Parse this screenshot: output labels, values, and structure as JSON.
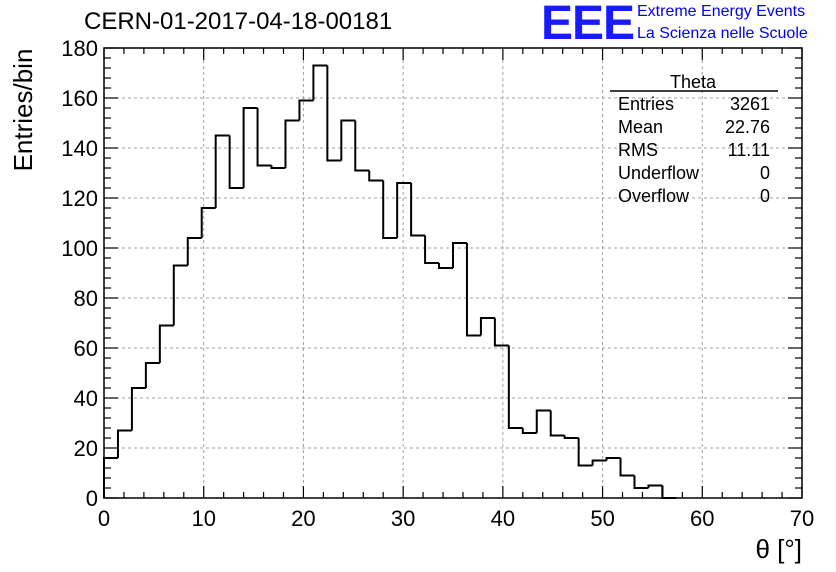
{
  "header": {
    "title": "CERN-01-2017-04-18-00181",
    "logo_mark": "EEE",
    "logo_line1": "Extreme Energy Events",
    "logo_line2": "La Scienza nelle Scuole"
  },
  "colors": {
    "histogram": "#000000",
    "grid": "#a0a0a0",
    "logo": "#1a1aff"
  },
  "stats": {
    "title": "Theta",
    "rows": [
      {
        "label": "Entries",
        "value": "3261"
      },
      {
        "label": "Mean",
        "value": "22.76"
      },
      {
        "label": "RMS",
        "value": "11.11"
      },
      {
        "label": "Underflow",
        "value": "0"
      },
      {
        "label": "Overflow",
        "value": "0"
      }
    ]
  },
  "chart_data": {
    "type": "histogram",
    "xlabel": "θ [°]",
    "ylabel": "Entries/bin",
    "xlim": [
      0,
      70
    ],
    "ylim": [
      0,
      180
    ],
    "bin_width": 1.4,
    "xticks": [
      0,
      10,
      20,
      30,
      40,
      50,
      60,
      70
    ],
    "yticks": [
      0,
      20,
      40,
      60,
      80,
      100,
      120,
      140,
      160,
      180
    ],
    "grid": true,
    "values": [
      16,
      27,
      44,
      54,
      69,
      93,
      104,
      116,
      145,
      124,
      156,
      133,
      132,
      151,
      159,
      173,
      135,
      151,
      131,
      127,
      104,
      126,
      105,
      94,
      92,
      102,
      65,
      72,
      61,
      28,
      26,
      35,
      25,
      24,
      13,
      15,
      16,
      9,
      4,
      5,
      0,
      0,
      0,
      0,
      0,
      0,
      0,
      0,
      0,
      0
    ]
  }
}
